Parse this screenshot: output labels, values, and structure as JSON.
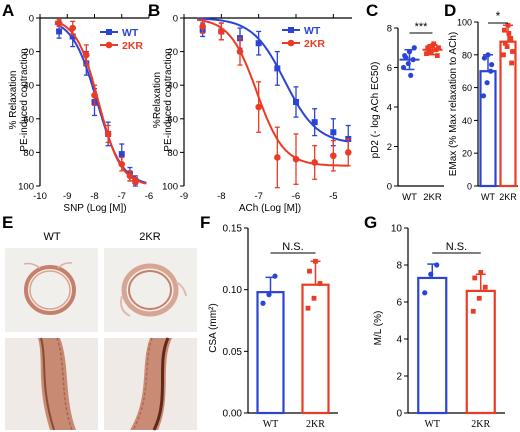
{
  "colors": {
    "wt": "#2c44d6",
    "ko": "#ec3b24",
    "axis": "#000000",
    "tissue": "#c77a66",
    "tissue_dark": "#6b3525"
  },
  "panels": {
    "A": {
      "letter": "A",
      "ylabel_line1": "% Relaxation",
      "ylabel_line2": "PE-induced contraction",
      "xlabel": "SNP (Log [M])"
    },
    "B": {
      "letter": "B",
      "ylabel_line1": "%Relaxation",
      "ylabel_line2": "PE-induced contraction",
      "xlabel": "ACh (Log [M])"
    },
    "C": {
      "letter": "C",
      "ylabel": "pD2 (- log ACh EC50)",
      "significance": "***"
    },
    "D": {
      "letter": "D",
      "ylabel": "EMax (% Max relaxation to ACh)",
      "significance": "*"
    },
    "E": {
      "letter": "E",
      "col1": "WT",
      "col2": "2KR"
    },
    "F": {
      "letter": "F",
      "ylabel": "CSA (mm²)",
      "significance": "N.S."
    },
    "G": {
      "letter": "G",
      "ylabel": "M/L (%)",
      "significance": "N.S."
    }
  },
  "legend": {
    "wt": "WT",
    "ko": "2KR"
  },
  "chart_data": [
    {
      "id": "A",
      "type": "line",
      "xlabel": "SNP (Log [M])",
      "ylabel": "% Relaxation PE-induced contraction",
      "xlim": [
        -10,
        -6
      ],
      "ylim": [
        0,
        100
      ],
      "y_inverted": true,
      "xticks": [
        -10,
        -9,
        -8,
        -7,
        -6
      ],
      "yticks": [
        0,
        20,
        40,
        60,
        80,
        100
      ],
      "series": [
        {
          "name": "WT",
          "color": "#2c44d6",
          "x": [
            -9.3,
            -8.8,
            -8.3,
            -8.0,
            -7.5,
            -7.0,
            -6.7,
            -6.5
          ],
          "y": [
            8,
            11,
            27,
            50,
            69,
            81,
            93,
            97
          ],
          "err": [
            4,
            6,
            7,
            8,
            7,
            6,
            4,
            3
          ],
          "fit": {
            "bottom": 0,
            "top": 100,
            "logEC50": -7.9,
            "hill": 0.95
          }
        },
        {
          "name": "2KR",
          "color": "#ec3b24",
          "x": [
            -9.3,
            -8.8,
            -8.3,
            -8.0,
            -7.5,
            -7.0,
            -6.7,
            -6.5
          ],
          "y": [
            3,
            6,
            22,
            46,
            69,
            87,
            94,
            97
          ],
          "err": [
            2,
            4,
            6,
            6,
            5,
            4,
            3,
            2
          ],
          "fit": {
            "bottom": 0,
            "top": 100,
            "logEC50": -7.85,
            "hill": 1.05
          }
        }
      ]
    },
    {
      "id": "B",
      "type": "line",
      "xlabel": "ACh (Log [M])",
      "ylabel": "%Relaxation PE-induced contraction",
      "xlim": [
        -9,
        -4.5
      ],
      "ylim": [
        0,
        100
      ],
      "y_inverted": true,
      "xticks": [
        -9,
        -8,
        -7,
        -6,
        -5
      ],
      "yticks": [
        0,
        20,
        40,
        60,
        80,
        100
      ],
      "series": [
        {
          "name": "WT",
          "color": "#2c44d6",
          "x": [
            -8.5,
            -8.0,
            -7.5,
            -7.0,
            -6.5,
            -6.0,
            -5.5,
            -5.0,
            -4.6
          ],
          "y": [
            7,
            8,
            12,
            15,
            30,
            50,
            62,
            68,
            72
          ],
          "err": [
            4,
            5,
            6,
            7,
            10,
            9,
            8,
            8,
            8
          ],
          "fit": {
            "bottom": 0,
            "top": 75,
            "logEC50": -6.3,
            "hill": 1.0
          }
        },
        {
          "name": "2KR",
          "color": "#ec3b24",
          "x": [
            -8.5,
            -8.0,
            -7.5,
            -7.0,
            -6.5,
            -6.0,
            -5.5,
            -5.0,
            -4.6
          ],
          "y": [
            5,
            8,
            20,
            53,
            83,
            84,
            86,
            82,
            80
          ],
          "err": [
            4,
            5,
            8,
            15,
            18,
            15,
            10,
            9,
            8
          ],
          "fit": {
            "bottom": 0,
            "top": 88,
            "logEC50": -7.05,
            "hill": 1.2
          }
        }
      ]
    },
    {
      "id": "C",
      "type": "scatter",
      "ylabel": "pD2 (- log ACh EC50)",
      "categories": [
        "WT",
        "2KR"
      ],
      "ylim": [
        0,
        8
      ],
      "yticks": [
        0,
        2,
        4,
        6,
        8
      ],
      "series": [
        {
          "name": "WT",
          "color": "#2c44d6",
          "mean": 6.4,
          "sd": 0.5,
          "points": [
            6.0,
            6.2,
            6.4,
            6.6,
            6.8,
            7.0,
            6.5,
            5.6
          ]
        },
        {
          "name": "2KR",
          "color": "#ec3b24",
          "mean": 6.9,
          "sd": 0.25,
          "points": [
            6.7,
            6.8,
            6.9,
            7.0,
            7.1,
            6.6,
            6.9,
            7.2,
            7.0,
            6.8
          ]
        }
      ],
      "annotation": "***"
    },
    {
      "id": "D",
      "type": "bar",
      "ylabel": "EMax (% Max relaxation to ACh)",
      "categories": [
        "WT",
        "2KR"
      ],
      "ylim": [
        0,
        100
      ],
      "yticks": [
        0,
        20,
        40,
        60,
        80,
        100
      ],
      "series": [
        {
          "name": "WT",
          "color": "#2c44d6",
          "mean": 70,
          "sd": 10,
          "points": [
            55,
            63,
            70,
            78,
            80,
            74
          ]
        },
        {
          "name": "2KR",
          "color": "#ec3b24",
          "mean": 88,
          "sd": 10,
          "points": [
            80,
            85,
            90,
            95,
            98,
            75,
            87,
            93,
            82
          ]
        }
      ],
      "annotation": "*"
    },
    {
      "id": "F",
      "type": "bar",
      "ylabel": "CSA (mm²)",
      "categories": [
        "WT",
        "2KR"
      ],
      "ylim": [
        0,
        0.15
      ],
      "yticks": [
        0,
        0.05,
        0.1,
        0.15
      ],
      "ytick_labels": [
        "0.00",
        "0.05",
        "0.10",
        "0.15"
      ],
      "series": [
        {
          "name": "WT",
          "color": "#2c44d6",
          "mean": 0.098,
          "sd": 0.012,
          "points": [
            0.089,
            0.096,
            0.111
          ]
        },
        {
          "name": "2KR",
          "color": "#ec3b24",
          "mean": 0.104,
          "sd": 0.019,
          "points": [
            0.085,
            0.093,
            0.105,
            0.115,
            0.123
          ]
        }
      ],
      "annotation": "N.S."
    },
    {
      "id": "G",
      "type": "bar",
      "ylabel": "M/L (%)",
      "categories": [
        "WT",
        "2KR"
      ],
      "ylim": [
        0,
        10
      ],
      "yticks": [
        0,
        2,
        4,
        6,
        8,
        10
      ],
      "series": [
        {
          "name": "WT",
          "color": "#2c44d6",
          "mean": 7.3,
          "sd": 0.75,
          "points": [
            6.5,
            7.5,
            8.0
          ]
        },
        {
          "name": "2KR",
          "color": "#ec3b24",
          "mean": 6.6,
          "sd": 0.9,
          "points": [
            5.5,
            6.2,
            6.8,
            7.3,
            7.6
          ]
        }
      ],
      "annotation": "N.S."
    }
  ]
}
